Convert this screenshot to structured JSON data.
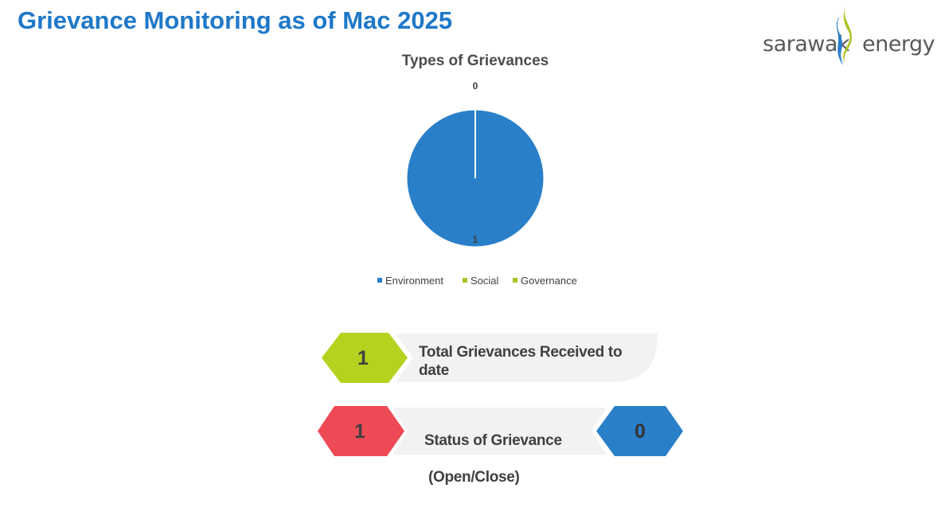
{
  "header": {
    "title": "Grievance Monitoring as of Mac 2025"
  },
  "logo": {
    "brand_left": "sarawak",
    "brand_right": "energy",
    "colors": {
      "blue": "#2a7fc9",
      "green": "#a8c523",
      "text": "#595959"
    }
  },
  "chart_data": {
    "type": "pie",
    "title": "Types of Grievances",
    "categories": [
      "Environment",
      "Social",
      "Governance"
    ],
    "values": [
      1,
      0,
      0
    ],
    "colors": [
      "#2a7fc9",
      "#a8c523",
      "#a8c523"
    ],
    "legend_position": "bottom"
  },
  "summary": {
    "total": {
      "value": "1",
      "label_line1": "Total Grievances Received to",
      "label_line2": "date",
      "color": "#b5d21e"
    },
    "status": {
      "open_value": "1",
      "label_line1": "Status of Grievance",
      "label_line2": " (Open/Close)",
      "close_value": "0",
      "open_color": "#ee4a56",
      "close_color": "#2a7fc9"
    }
  }
}
